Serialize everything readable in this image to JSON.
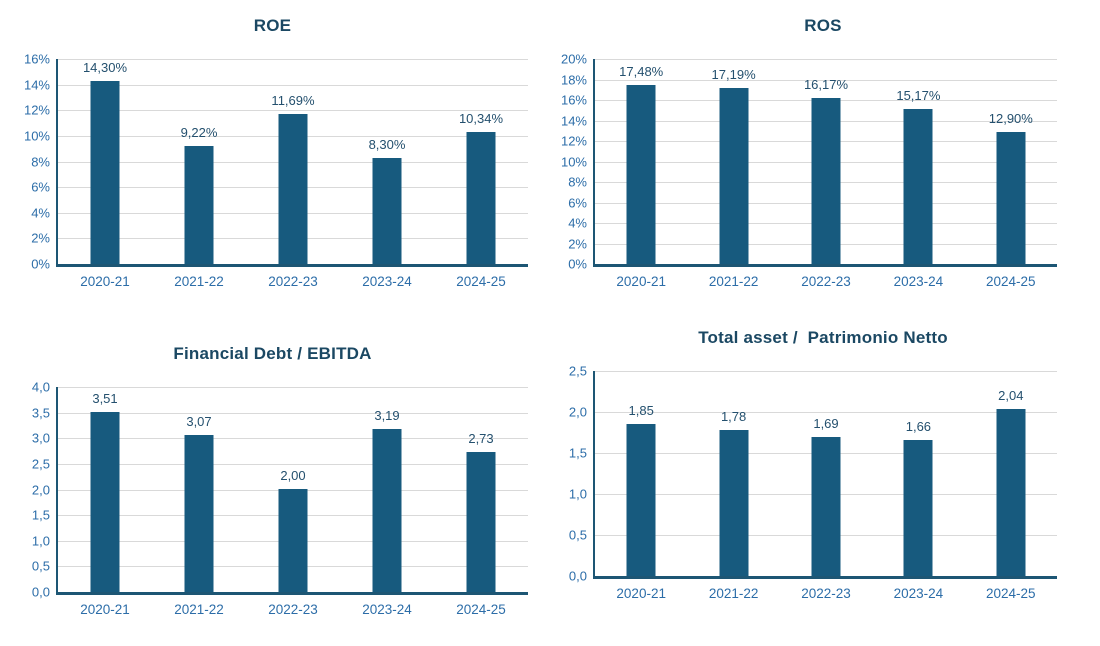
{
  "colors": {
    "bar_fill": "#175a7e",
    "axis_line": "#1d5674",
    "gridline": "#d9d9d9",
    "title_text": "#1b4863",
    "data_label_text": "#24506e",
    "tick_label_text": "#2c6da8",
    "background": "#ffffff"
  },
  "chart_data": [
    {
      "id": "roe",
      "type": "bar",
      "title": "ROE",
      "categories": [
        "2020-21",
        "2021-22",
        "2022-23",
        "2023-24",
        "2024-25"
      ],
      "values": [
        14.3,
        9.22,
        11.69,
        8.3,
        10.34
      ],
      "data_labels": [
        "14,30%",
        "9,22%",
        "11,69%",
        "8,30%",
        "10,34%"
      ],
      "ylim": [
        0,
        16
      ],
      "ytick_step": 2,
      "ytick_labels": [
        "0%",
        "2%",
        "4%",
        "6%",
        "8%",
        "10%",
        "12%",
        "14%",
        "16%"
      ],
      "grid": true,
      "legend": false
    },
    {
      "id": "ros",
      "type": "bar",
      "title": "ROS",
      "categories": [
        "2020-21",
        "2021-22",
        "2022-23",
        "2023-24",
        "2024-25"
      ],
      "values": [
        17.48,
        17.19,
        16.17,
        15.17,
        12.9
      ],
      "data_labels": [
        "17,48%",
        "17,19%",
        "16,17%",
        "15,17%",
        "12,90%"
      ],
      "ylim": [
        0,
        20
      ],
      "ytick_step": 2,
      "ytick_labels": [
        "0%",
        "2%",
        "4%",
        "6%",
        "8%",
        "10%",
        "12%",
        "14%",
        "16%",
        "18%",
        "20%"
      ],
      "grid": true,
      "legend": false
    },
    {
      "id": "financial-debt-ebitda",
      "type": "bar",
      "title": "Financial Debt / EBITDA",
      "categories": [
        "2020-21",
        "2021-22",
        "2022-23",
        "2023-24",
        "2024-25"
      ],
      "values": [
        3.51,
        3.07,
        2.0,
        3.19,
        2.73
      ],
      "data_labels": [
        "3,51",
        "3,07",
        "2,00",
        "3,19",
        "2,73"
      ],
      "ylim": [
        0,
        4
      ],
      "ytick_step": 0.5,
      "ytick_labels": [
        "0,0",
        "0,5",
        "1,0",
        "1,5",
        "2,0",
        "2,5",
        "3,0",
        "3,5",
        "4,0"
      ],
      "grid": true,
      "legend": false
    },
    {
      "id": "total-asset-patrimonio-netto",
      "type": "bar",
      "title": "Total asset /  Patrimonio Netto",
      "categories": [
        "2020-21",
        "2021-22",
        "2022-23",
        "2023-24",
        "2024-25"
      ],
      "values": [
        1.85,
        1.78,
        1.69,
        1.66,
        2.04
      ],
      "data_labels": [
        "1,85",
        "1,78",
        "1,69",
        "1,66",
        "2,04"
      ],
      "ylim": [
        0,
        2.5
      ],
      "ytick_step": 0.5,
      "ytick_labels": [
        "0,0",
        "0,5",
        "1,0",
        "1,5",
        "2,0",
        "2,5"
      ],
      "grid": true,
      "legend": false
    }
  ]
}
